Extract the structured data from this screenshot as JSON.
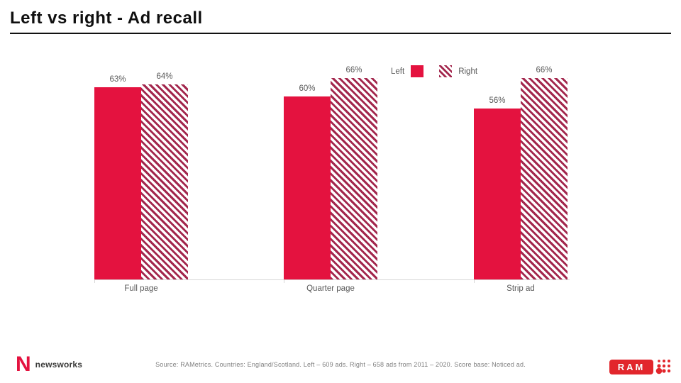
{
  "slide": {
    "title": "Left vs right - Ad recall"
  },
  "chart_data": {
    "type": "bar",
    "title": "Left vs right - Ad recall",
    "categories": [
      "Full page",
      "Quarter page",
      "Strip ad"
    ],
    "series": [
      {
        "name": "Left",
        "style": "solid",
        "values": [
          63,
          60,
          56
        ]
      },
      {
        "name": "Right",
        "style": "striped",
        "values": [
          64,
          66,
          66
        ]
      }
    ],
    "value_suffix": "%",
    "ylim": [
      0,
      70
    ],
    "grid": false,
    "legend_position": "top-right",
    "colors": {
      "solid": "#e4123f",
      "stripe": "#a3274d"
    }
  },
  "legend": {
    "left": "Left",
    "right": "Right"
  },
  "footer": {
    "source": "Source: RAMetrics. Countries: England/Scotland. Left – 609 ads. Right – 658 ads from 2011 – 2020. Score base: Noticed ad.",
    "newsworks_n": "N",
    "newsworks_word": "newsworks",
    "ram_word": "RAM"
  },
  "ui_colors": {
    "label_gray": "#595959",
    "source_gray": "#7f7f7f",
    "axis_gray": "#d6d6d6"
  }
}
